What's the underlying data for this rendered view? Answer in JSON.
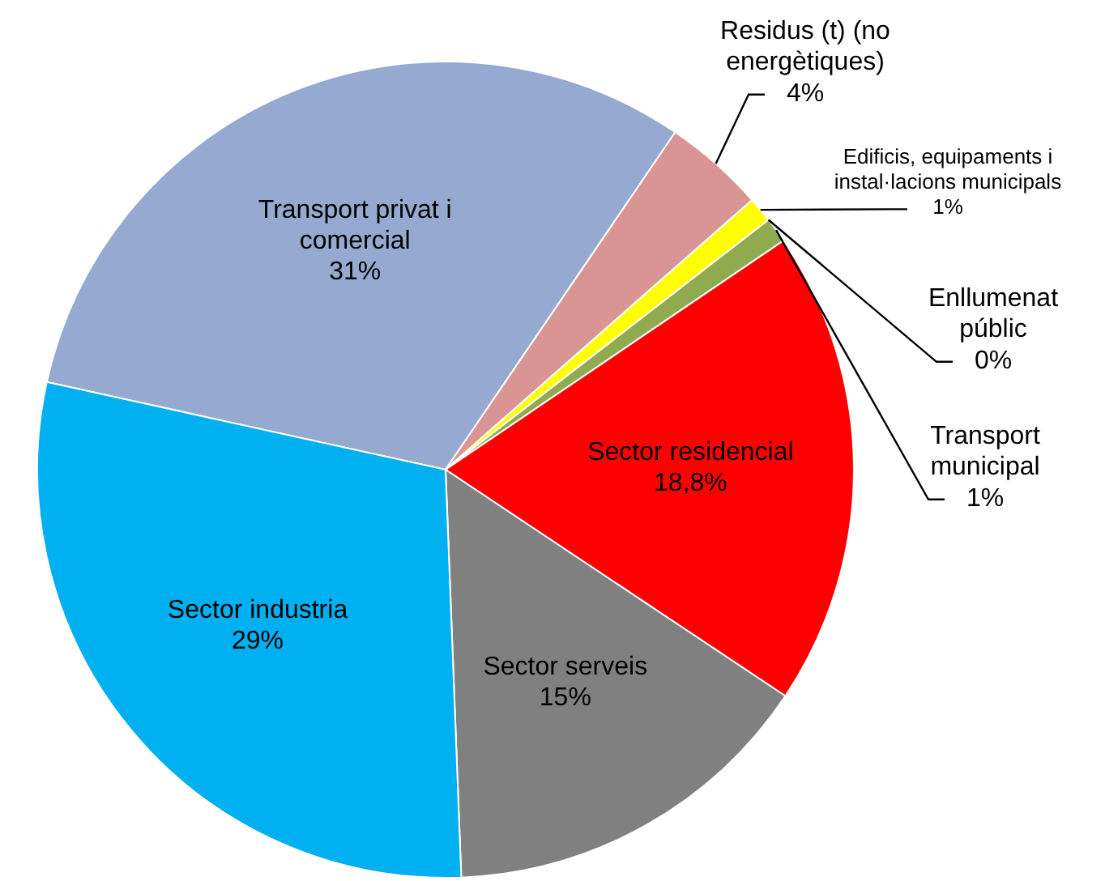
{
  "chart_data": {
    "type": "pie",
    "categories": [
      "Transport privat i comercial",
      "Residus (t) (no energètiques)",
      "Edificis, equipaments i instal·lacions municipals",
      "Enllumenat públic",
      "Transport municipal",
      "Sector residencial",
      "Sector serveis",
      "Sector industria"
    ],
    "values": [
      31,
      4,
      1,
      0,
      1,
      18.8,
      15,
      29
    ],
    "value_labels": [
      "31%",
      "4%",
      "1%",
      "0%",
      "1%",
      "18,8%",
      "15%",
      "29%"
    ],
    "colors": [
      "#95a9d1",
      "#d99594",
      "#ffff00",
      "#e46c0a",
      "#8faa4f",
      "#ff0000",
      "#808080",
      "#00b0f0"
    ],
    "legend": false
  }
}
